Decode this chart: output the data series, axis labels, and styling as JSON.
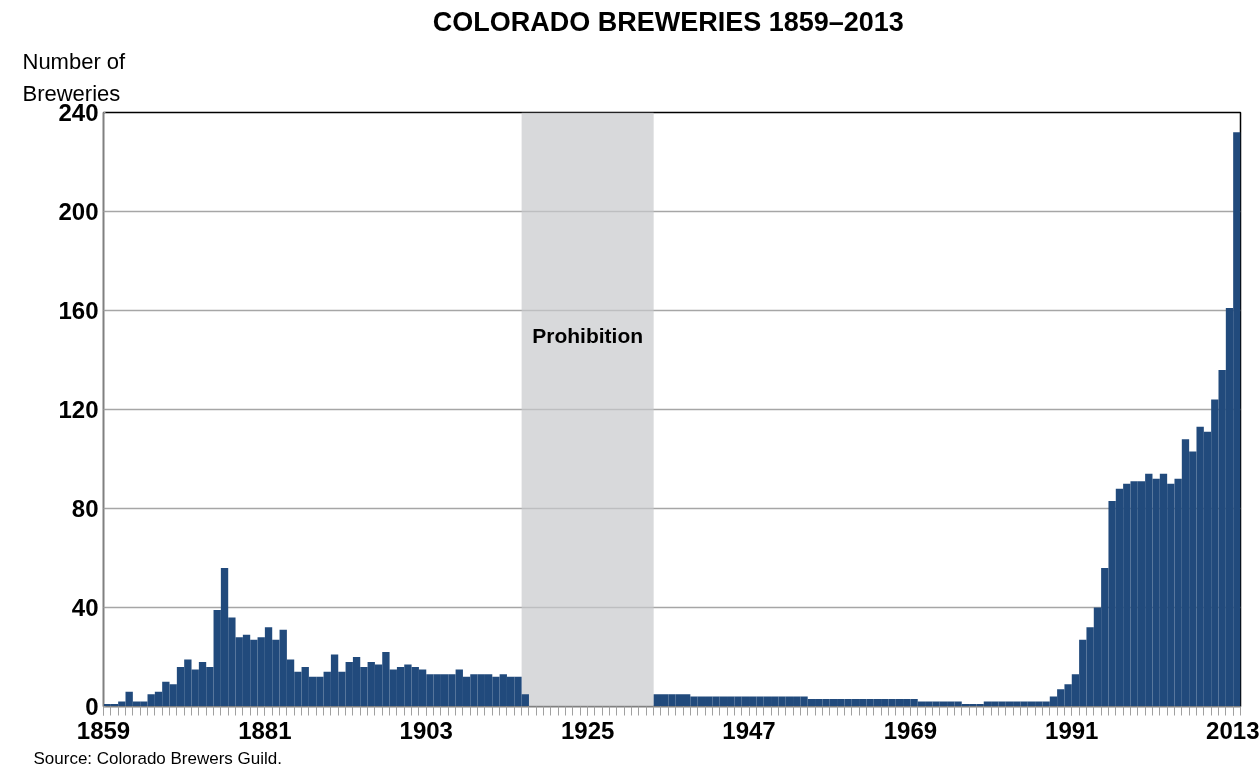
{
  "chart_data": {
    "type": "bar",
    "title": "COLORADO BREWERIES  1859–2013",
    "ylabel": "Number of\nBreweries",
    "x": [
      1859,
      1860,
      1861,
      1862,
      1863,
      1864,
      1865,
      1866,
      1867,
      1868,
      1869,
      1870,
      1871,
      1872,
      1873,
      1874,
      1875,
      1876,
      1877,
      1878,
      1879,
      1880,
      1881,
      1882,
      1883,
      1884,
      1885,
      1886,
      1887,
      1888,
      1889,
      1890,
      1891,
      1892,
      1893,
      1894,
      1895,
      1896,
      1897,
      1898,
      1899,
      1900,
      1901,
      1902,
      1903,
      1904,
      1905,
      1906,
      1907,
      1908,
      1909,
      1910,
      1911,
      1912,
      1913,
      1914,
      1915,
      1916,
      1917,
      1918,
      1919,
      1920,
      1921,
      1922,
      1923,
      1924,
      1925,
      1926,
      1927,
      1928,
      1929,
      1930,
      1931,
      1932,
      1933,
      1934,
      1935,
      1936,
      1937,
      1938,
      1939,
      1940,
      1941,
      1942,
      1943,
      1944,
      1945,
      1946,
      1947,
      1948,
      1949,
      1950,
      1951,
      1952,
      1953,
      1954,
      1955,
      1956,
      1957,
      1958,
      1959,
      1960,
      1961,
      1962,
      1963,
      1964,
      1965,
      1966,
      1967,
      1968,
      1969,
      1970,
      1971,
      1972,
      1973,
      1974,
      1975,
      1976,
      1977,
      1978,
      1979,
      1980,
      1981,
      1982,
      1983,
      1984,
      1985,
      1986,
      1987,
      1988,
      1989,
      1990,
      1991,
      1992,
      1993,
      1994,
      1995,
      1996,
      1997,
      1998,
      1999,
      2000,
      2001,
      2002,
      2003,
      2004,
      2005,
      2006,
      2007,
      2008,
      2009,
      2010,
      2011,
      2012,
      2013
    ],
    "values": [
      1,
      1,
      2,
      6,
      2,
      2,
      5,
      6,
      10,
      9,
      16,
      19,
      15,
      18,
      16,
      39,
      56,
      36,
      28,
      29,
      27,
      28,
      32,
      27,
      31,
      19,
      14,
      16,
      12,
      12,
      14,
      21,
      14,
      18,
      20,
      16,
      18,
      17,
      22,
      15,
      16,
      17,
      16,
      15,
      13,
      13,
      13,
      13,
      15,
      12,
      13,
      13,
      13,
      12,
      13,
      12,
      12,
      5,
      0,
      0,
      0,
      0,
      0,
      0,
      0,
      0,
      0,
      0,
      0,
      0,
      0,
      0,
      0,
      0,
      0,
      5,
      5,
      5,
      5,
      5,
      4,
      4,
      4,
      4,
      4,
      4,
      4,
      4,
      4,
      4,
      4,
      4,
      4,
      4,
      4,
      4,
      3,
      3,
      3,
      3,
      3,
      3,
      3,
      3,
      3,
      3,
      3,
      3,
      3,
      3,
      3,
      2,
      2,
      2,
      2,
      2,
      2,
      1,
      1,
      1,
      2,
      2,
      2,
      2,
      2,
      2,
      2,
      2,
      2,
      4,
      7,
      9,
      13,
      27,
      32,
      40,
      56,
      83,
      88,
      90,
      91,
      91,
      94,
      92,
      94,
      90,
      92,
      108,
      103,
      113,
      111,
      124,
      136,
      161,
      232
    ],
    "color": "#214a7c",
    "xlim": [
      1859,
      2014
    ],
    "xticks": [
      1859,
      1881,
      1903,
      1925,
      1947,
      1969,
      1991,
      2013
    ],
    "ylim": [
      0,
      240
    ],
    "yticks": [
      0,
      40,
      80,
      120,
      160,
      200,
      240
    ],
    "grid": "y",
    "bands": [
      {
        "axis": "x",
        "from": 1916,
        "to": 1934,
        "label": "Prohibition",
        "color": "#c8c9cc"
      }
    ],
    "annotations": [
      "Source: Colorado Brewers Guild."
    ]
  }
}
